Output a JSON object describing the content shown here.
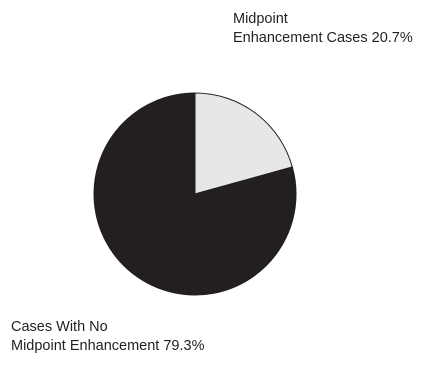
{
  "chart_data": {
    "type": "pie",
    "title": "",
    "slices": [
      {
        "label_lines": [
          "Midpoint",
          "Enhancement Cases 20.7%"
        ],
        "value": 20.7,
        "color": "#e6e7e8"
      },
      {
        "label_lines": [
          "Cases With No",
          "Midpoint Enhancement 79.3%"
        ],
        "value": 79.3,
        "color": "#231f20"
      }
    ],
    "start_angle_deg": 0,
    "direction": "clockwise",
    "outline_color": "#231f20"
  }
}
